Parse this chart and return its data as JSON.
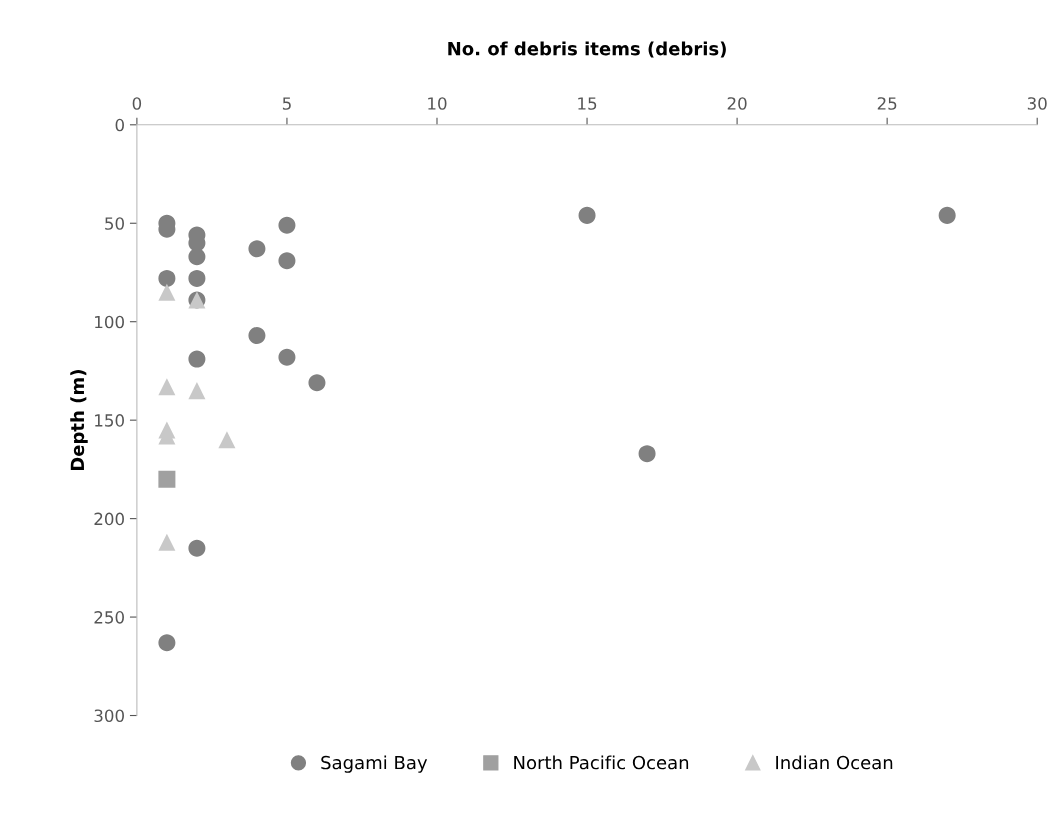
{
  "chart_data": {
    "type": "scatter",
    "xlabel": "No. of debris items (debris)",
    "ylabel": "Depth (m)",
    "xlim": [
      0,
      30
    ],
    "xticks": [
      0,
      5,
      10,
      15,
      20,
      25,
      30
    ],
    "ylim": [
      300,
      0
    ],
    "yticks": [
      0,
      50,
      100,
      150,
      200,
      250,
      300
    ],
    "grid": false,
    "legend": "bottom",
    "series": [
      {
        "name": "Sagami Bay",
        "color": "#808080",
        "marker": "circle",
        "x": [
          1,
          1,
          2,
          2,
          2,
          4,
          5,
          5,
          1,
          2,
          2,
          4,
          2,
          5,
          6,
          2,
          1,
          15,
          27,
          17
        ],
        "values": [
          50,
          53,
          56,
          60,
          67,
          63,
          51,
          69,
          78,
          78,
          89,
          107,
          119,
          118,
          131,
          215,
          263,
          46,
          46,
          167
        ]
      },
      {
        "name": "North Pacific Ocean",
        "color": "#a0a0a0",
        "marker": "square",
        "x": [
          1
        ],
        "values": [
          180
        ]
      },
      {
        "name": "Indian Ocean",
        "color": "#c8c8c8",
        "marker": "triangle",
        "x": [
          1,
          2,
          1,
          2,
          1,
          1,
          3,
          1
        ],
        "values": [
          85,
          89,
          133,
          135,
          155,
          158,
          160,
          212
        ]
      }
    ]
  }
}
